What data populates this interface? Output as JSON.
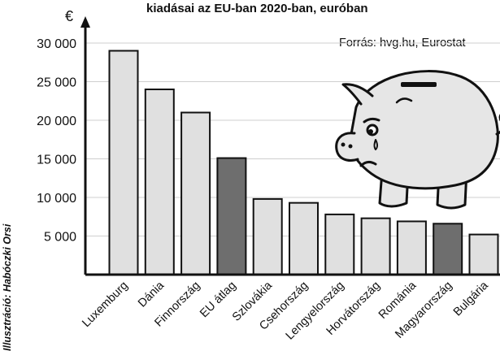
{
  "chart_data": {
    "type": "bar",
    "title": "kiadásai az EU-ban 2020-ban, euróban",
    "ylabel": "€",
    "source": "Forrás: hvg.hu, Eurostat",
    "credit": "Illusztráció: Habóczki Orsi",
    "categories": [
      "Luxemburg",
      "Dánia",
      "Finnország",
      "EU átlag",
      "Szlovákia",
      "Csehország",
      "Lengyelország",
      "Horvátország",
      "Románia",
      "Magyarország",
      "Bulgária"
    ],
    "values": [
      29000,
      24000,
      21000,
      15100,
      9800,
      9300,
      7800,
      7300,
      6900,
      6600,
      5200
    ],
    "highlighted": [
      "EU átlag",
      "Magyarország"
    ],
    "ylim": [
      0,
      30000
    ],
    "yticks": [
      5000,
      10000,
      15000,
      20000,
      25000,
      30000
    ],
    "ytick_labels": [
      "5 000",
      "10 000",
      "15 000",
      "20 000",
      "25 000",
      "30 000"
    ],
    "grid": true,
    "colors": {
      "bar": "#e0e0e0",
      "highlight": "#6e6e6e",
      "outline": "#111111",
      "grid": "#cfcfcf"
    }
  },
  "illustration": {
    "icon": "piggy-bank-icon"
  }
}
